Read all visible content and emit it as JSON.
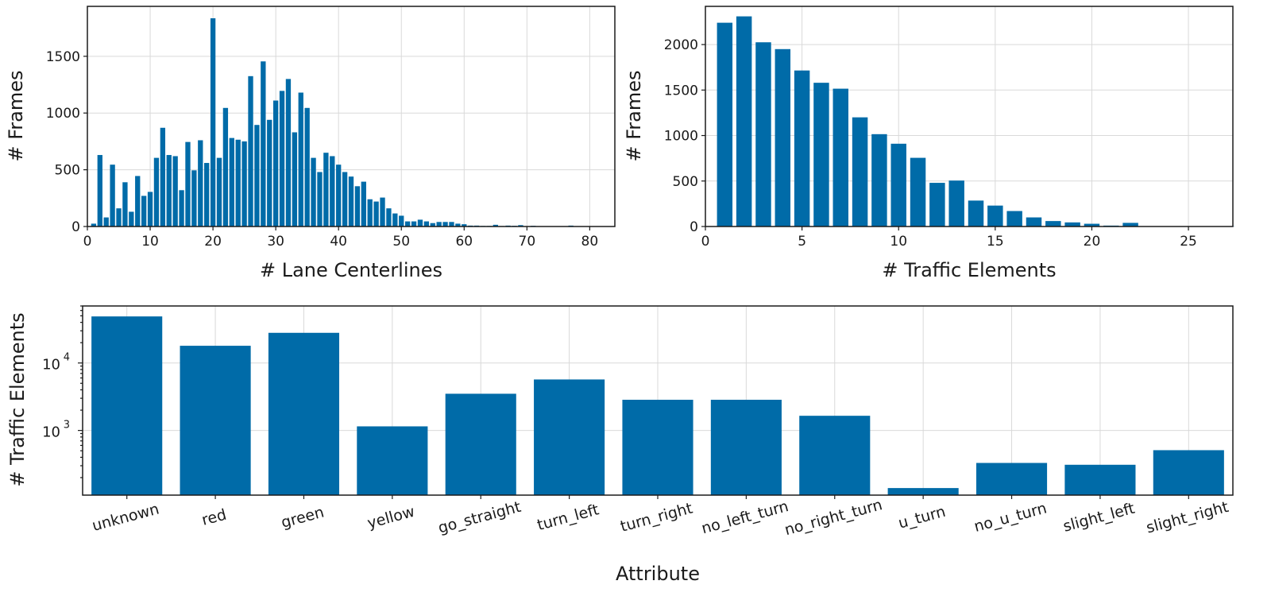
{
  "bar_color": "#006BA8",
  "chart_data": [
    {
      "type": "bar",
      "xlabel": "# Lane Centerlines",
      "ylabel": "# Frames",
      "xlim": [
        0,
        84
      ],
      "ylim": [
        0,
        1940
      ],
      "xticks": [
        0,
        10,
        20,
        30,
        40,
        50,
        60,
        70,
        80
      ],
      "yticks": [
        0,
        500,
        1000,
        1500
      ],
      "grid": true,
      "x": [
        1,
        2,
        3,
        4,
        5,
        6,
        7,
        8,
        9,
        10,
        11,
        12,
        13,
        14,
        15,
        16,
        17,
        18,
        19,
        20,
        21,
        22,
        23,
        24,
        25,
        26,
        27,
        28,
        29,
        30,
        31,
        32,
        33,
        34,
        35,
        36,
        37,
        38,
        39,
        40,
        41,
        42,
        43,
        44,
        45,
        46,
        47,
        48,
        49,
        50,
        51,
        52,
        53,
        54,
        55,
        56,
        57,
        58,
        59,
        60,
        61,
        62,
        63,
        64,
        65,
        66,
        67,
        68,
        69,
        70,
        71,
        72,
        73,
        74,
        75,
        76,
        77,
        78,
        79,
        80
      ],
      "values": [
        25,
        630,
        80,
        545,
        160,
        390,
        130,
        445,
        270,
        305,
        605,
        870,
        630,
        620,
        320,
        745,
        495,
        760,
        560,
        1835,
        605,
        1045,
        780,
        765,
        750,
        1325,
        895,
        1455,
        940,
        1110,
        1195,
        1300,
        830,
        1180,
        1045,
        605,
        480,
        650,
        620,
        545,
        480,
        440,
        355,
        395,
        240,
        220,
        255,
        160,
        115,
        95,
        45,
        45,
        60,
        45,
        30,
        40,
        40,
        40,
        25,
        20,
        8,
        8,
        5,
        5,
        15,
        4,
        8,
        6,
        12,
        3,
        6,
        3,
        3,
        3,
        2,
        3,
        8,
        2,
        2,
        2
      ]
    },
    {
      "type": "bar",
      "xlabel": "# Traffic Elements",
      "ylabel": "# Frames",
      "xlim": [
        0,
        27.3
      ],
      "ylim": [
        0,
        2420
      ],
      "xticks": [
        0,
        5,
        10,
        15,
        20,
        25
      ],
      "yticks": [
        0,
        500,
        1000,
        1500,
        2000
      ],
      "grid": true,
      "x": [
        1,
        2,
        3,
        4,
        5,
        6,
        7,
        8,
        9,
        10,
        11,
        12,
        13,
        14,
        15,
        16,
        17,
        18,
        19,
        20,
        21,
        22,
        23,
        24,
        25,
        26,
        27
      ],
      "values": [
        2240,
        2310,
        2025,
        1950,
        1715,
        1580,
        1515,
        1200,
        1015,
        910,
        755,
        480,
        505,
        285,
        230,
        170,
        100,
        60,
        45,
        30,
        10,
        40,
        4,
        3,
        2,
        2,
        2
      ]
    },
    {
      "type": "bar",
      "xlabel": "Attribute",
      "ylabel": "# Traffic Elements",
      "yscale": "log",
      "ylim": [
        110,
        70000
      ],
      "yticks": [
        1000,
        10000
      ],
      "ytick_labels": [
        [
          "10",
          "3"
        ],
        [
          "10",
          "4"
        ]
      ],
      "grid": true,
      "categories": [
        "unknown",
        "red",
        "green",
        "yellow",
        "go_straight",
        "turn_left",
        "turn_right",
        "no_left_turn",
        "no_right_turn",
        "u_turn",
        "no_u_turn",
        "slight_left",
        "slight_right"
      ],
      "values": [
        49000,
        18000,
        28000,
        1150,
        3500,
        5700,
        2850,
        2850,
        1650,
        140,
        330,
        310,
        510
      ]
    }
  ]
}
